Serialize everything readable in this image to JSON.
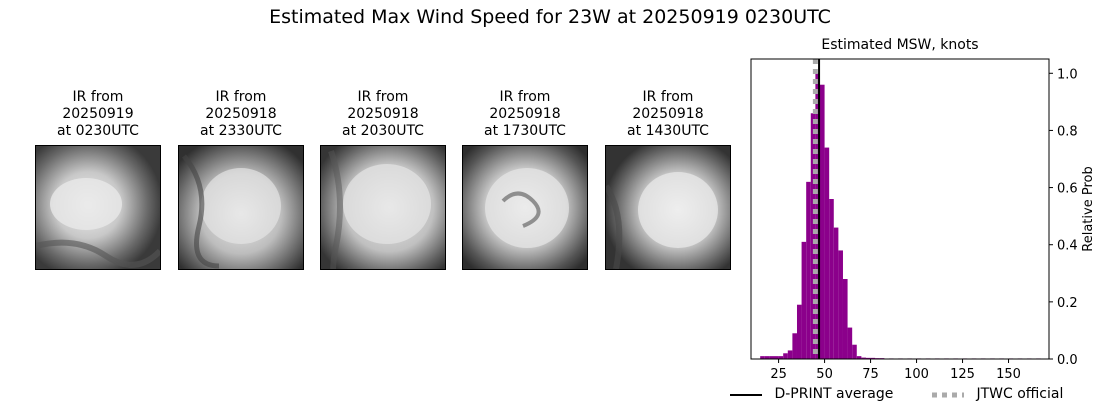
{
  "suptitle": "Estimated Max Wind Speed for 23W at 20250919 0230UTC",
  "panels": [
    {
      "line1": "IR from",
      "line2": "20250919",
      "line3": "at 0230UTC"
    },
    {
      "line1": "IR from",
      "line2": "20250918",
      "line3": "at 2330UTC"
    },
    {
      "line1": "IR from",
      "line2": "20250918",
      "line3": "at 2030UTC"
    },
    {
      "line1": "IR from",
      "line2": "20250918",
      "line3": "at 1730UTC"
    },
    {
      "line1": "IR from",
      "line2": "20250918",
      "line3": "at 1430UTC"
    }
  ],
  "chart_data": {
    "type": "bar",
    "title": "Estimated MSW, knots",
    "xlabel": "",
    "ylabel": "Relative Prob",
    "xlim": [
      10,
      172
    ],
    "ylim": [
      0,
      1.05
    ],
    "xticks": [
      25,
      50,
      75,
      100,
      125,
      150
    ],
    "yticks": [
      0.0,
      0.2,
      0.4,
      0.6,
      0.8,
      1.0
    ],
    "bin_width": 2.5,
    "bar_color": "#8B008B",
    "bins": [
      {
        "x0": 15,
        "value": 0.01
      },
      {
        "x0": 17.5,
        "value": 0.01
      },
      {
        "x0": 20,
        "value": 0.01
      },
      {
        "x0": 22.5,
        "value": 0.01
      },
      {
        "x0": 25,
        "value": 0.01
      },
      {
        "x0": 27.5,
        "value": 0.02
      },
      {
        "x0": 30,
        "value": 0.03
      },
      {
        "x0": 32.5,
        "value": 0.09
      },
      {
        "x0": 35,
        "value": 0.19
      },
      {
        "x0": 37.5,
        "value": 0.41
      },
      {
        "x0": 40,
        "value": 0.62
      },
      {
        "x0": 42.5,
        "value": 0.86
      },
      {
        "x0": 45,
        "value": 1.0
      },
      {
        "x0": 47.5,
        "value": 0.96
      },
      {
        "x0": 50,
        "value": 0.74
      },
      {
        "x0": 52.5,
        "value": 0.56
      },
      {
        "x0": 55,
        "value": 0.46
      },
      {
        "x0": 57.5,
        "value": 0.38
      },
      {
        "x0": 60,
        "value": 0.28
      },
      {
        "x0": 62.5,
        "value": 0.11
      },
      {
        "x0": 65,
        "value": 0.05
      },
      {
        "x0": 67.5,
        "value": 0.01
      },
      {
        "x0": 70,
        "value": 0.005
      },
      {
        "x0": 72.5,
        "value": 0.004
      },
      {
        "x0": 75,
        "value": 0.004
      },
      {
        "x0": 77.5,
        "value": 0.003
      },
      {
        "x0": 80,
        "value": 0.003
      },
      {
        "x0": 85,
        "value": 0.002
      },
      {
        "x0": 90,
        "value": 0.002
      },
      {
        "x0": 95,
        "value": 0.002
      },
      {
        "x0": 100,
        "value": 0.002
      },
      {
        "x0": 105,
        "value": 0.002
      },
      {
        "x0": 110,
        "value": 0.002
      },
      {
        "x0": 115,
        "value": 0.002
      },
      {
        "x0": 120,
        "value": 0.002
      },
      {
        "x0": 125,
        "value": 0.002
      },
      {
        "x0": 130,
        "value": 0.002
      },
      {
        "x0": 135,
        "value": 0.002
      },
      {
        "x0": 140,
        "value": 0.002
      },
      {
        "x0": 145,
        "value": 0.002
      },
      {
        "x0": 150,
        "value": 0.002
      },
      {
        "x0": 155,
        "value": 0.002
      },
      {
        "x0": 160,
        "value": 0.002
      },
      {
        "x0": 165,
        "value": 0.002
      }
    ],
    "reference_lines": [
      {
        "name": "D-PRINT average",
        "x": 47,
        "color": "#000000",
        "style": "solid"
      },
      {
        "name": "JTWC official",
        "x": 45,
        "color": "#aaaaaa",
        "style": "dotted"
      }
    ],
    "legend": "bottom"
  }
}
